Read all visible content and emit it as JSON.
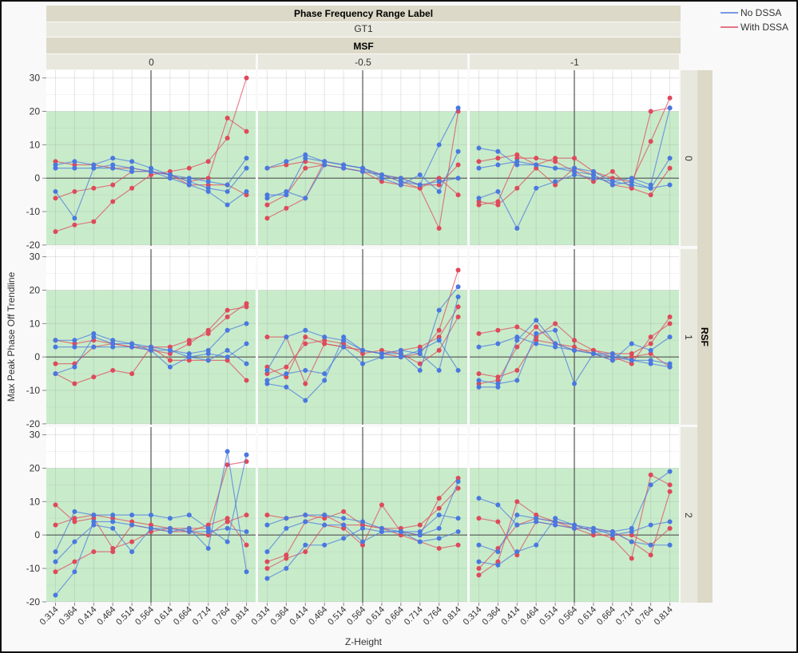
{
  "chart_data": {
    "type": "line",
    "title": "Phase Frequency Range Label",
    "group_value": "GT1",
    "column_facet": {
      "label": "MSF",
      "values": [
        "0",
        "-0.5",
        "-1"
      ]
    },
    "row_facet": {
      "label": "RSF",
      "values": [
        "0",
        "1",
        "2"
      ]
    },
    "xlabel": "Z-Height",
    "ylabel": "Max Peak Phase Off Trendline",
    "x": [
      0.314,
      0.364,
      0.414,
      0.464,
      0.514,
      0.564,
      0.614,
      0.664,
      0.714,
      0.764,
      0.814
    ],
    "x_tick_labels": [
      "0.314",
      "0.364",
      "0.414",
      "0.464",
      "0.514",
      "0.564",
      "0.614",
      "0.664",
      "0.714",
      "0.764",
      "0.814"
    ],
    "y_ticks": [
      30,
      20,
      10,
      0,
      -10,
      -20
    ],
    "ylim": [
      -20.5,
      32.3
    ],
    "reference_band": [
      -20,
      20
    ],
    "reference_x": 0.564,
    "reference_y": 0,
    "grid": true,
    "legend": {
      "placement": "top-right",
      "entries": [
        {
          "name": "No DSSA",
          "color": "#4a78e0"
        },
        {
          "name": "With DSSA",
          "color": "#de4a5c"
        }
      ]
    },
    "panels": [
      {
        "rsf": "0",
        "msf": "0",
        "No DSSA": [
          [
            4,
            5,
            4,
            6,
            5,
            3,
            1,
            -1,
            -3,
            -4,
            3
          ],
          [
            3,
            3,
            3,
            3,
            2,
            2,
            1,
            0,
            -1,
            -2,
            6
          ],
          [
            -4,
            -12,
            3,
            4,
            3,
            2,
            0,
            -2,
            -4,
            -8,
            -4
          ]
        ],
        "With DSSA": [
          [
            -16,
            -14,
            -13,
            -7,
            -3,
            1,
            2,
            3,
            5,
            12,
            30
          ],
          [
            -6,
            -4,
            -3,
            -2,
            2,
            2,
            1,
            -1,
            0,
            18,
            14
          ],
          [
            5,
            4,
            4,
            3,
            3,
            2,
            1,
            -2,
            -2,
            -2,
            -5
          ]
        ]
      },
      {
        "rsf": "0",
        "msf": "-0.5",
        "No DSSA": [
          [
            -5,
            -5,
            6,
            5,
            4,
            3,
            1,
            -1,
            -2,
            10,
            21
          ],
          [
            3,
            5,
            7,
            5,
            4,
            3,
            0,
            -2,
            1,
            -4,
            8
          ],
          [
            -6,
            -4,
            -6,
            4,
            3,
            2,
            1,
            0,
            -2,
            -1,
            0
          ]
        ],
        "With DSSA": [
          [
            -12,
            -9,
            -6,
            5,
            4,
            3,
            1,
            -1,
            -3,
            -15,
            20
          ],
          [
            3,
            4,
            5,
            4,
            3,
            2,
            -1,
            -2,
            -3,
            0,
            -5
          ],
          [
            -8,
            -5,
            3,
            4,
            3,
            2,
            1,
            0,
            -2,
            -2,
            4
          ]
        ]
      },
      {
        "rsf": "0",
        "msf": "-1",
        "No DSSA": [
          [
            9,
            8,
            4,
            4,
            3,
            3,
            2,
            -1,
            0,
            -2,
            21
          ],
          [
            -6,
            -4,
            -15,
            -3,
            -1,
            1,
            0,
            -1,
            -2,
            -3,
            6
          ],
          [
            3,
            4,
            5,
            4,
            3,
            2,
            1,
            -2,
            -1,
            -3,
            -2
          ]
        ],
        "With DSSA": [
          [
            -8,
            -7,
            6,
            6,
            5,
            2,
            -1,
            2,
            -3,
            20,
            21
          ],
          [
            5,
            6,
            7,
            4,
            6,
            6,
            2,
            0,
            -1,
            11,
            24
          ],
          [
            -7,
            -8,
            -3,
            3,
            -2,
            3,
            1,
            -2,
            -3,
            -5,
            3
          ]
        ]
      },
      {
        "rsf": "1",
        "msf": "0",
        "No DSSA": [
          [
            5,
            5,
            7,
            5,
            4,
            3,
            2,
            1,
            2,
            8,
            10
          ],
          [
            -5,
            -3,
            6,
            4,
            4,
            2,
            -3,
            0,
            -1,
            2,
            -2
          ],
          [
            3,
            3,
            3,
            3,
            3,
            2,
            2,
            0,
            1,
            0,
            4
          ]
        ],
        "With DSSA": [
          [
            -5,
            -8,
            -6,
            -4,
            -5,
            3,
            3,
            5,
            7,
            12,
            16
          ],
          [
            -2,
            -2,
            3,
            4,
            3,
            3,
            -1,
            -1,
            -1,
            -1,
            -7
          ],
          [
            5,
            4,
            5,
            4,
            3,
            2,
            1,
            4,
            8,
            14,
            15
          ]
        ]
      },
      {
        "rsf": "1",
        "msf": "-0.5",
        "No DSSA": [
          [
            -8,
            -9,
            -13,
            -7,
            6,
            2,
            1,
            1,
            -4,
            14,
            21
          ],
          [
            -4,
            6,
            8,
            6,
            5,
            2,
            1,
            2,
            1,
            -4,
            18
          ],
          [
            -7,
            -5,
            -4,
            -5,
            3,
            -2,
            0,
            0,
            2,
            5,
            -4
          ]
        ],
        "With DSSA": [
          [
            6,
            6,
            -8,
            4,
            3,
            2,
            1,
            0,
            1,
            8,
            26
          ],
          [
            -5,
            -3,
            4,
            5,
            4,
            1,
            2,
            1,
            -2,
            2,
            12
          ],
          [
            -3,
            -6,
            6,
            4,
            3,
            2,
            1,
            2,
            3,
            6,
            15
          ]
        ]
      },
      {
        "rsf": "1",
        "msf": "-1",
        "No DSSA": [
          [
            -9,
            -9,
            5,
            11,
            4,
            2,
            1,
            -1,
            4,
            2,
            6
          ],
          [
            -7,
            -8,
            -7,
            7,
            8,
            -8,
            1,
            1,
            -1,
            -1,
            -2
          ],
          [
            3,
            4,
            6,
            4,
            3,
            2,
            1,
            0,
            -1,
            -2,
            -3
          ]
        ],
        "With DSSA": [
          [
            7,
            8,
            9,
            6,
            10,
            5,
            2,
            1,
            1,
            4,
            12
          ],
          [
            -8,
            -7,
            3,
            9,
            4,
            3,
            1,
            -1,
            0,
            1,
            -3
          ],
          [
            -5,
            -6,
            -4,
            5,
            4,
            2,
            2,
            0,
            -2,
            6,
            10
          ]
        ]
      },
      {
        "rsf": "2",
        "msf": "0",
        "No DSSA": [
          [
            -18,
            -11,
            4,
            4,
            3,
            2,
            1,
            2,
            -4,
            25,
            -11
          ],
          [
            -5,
            7,
            6,
            6,
            6,
            6,
            5,
            6,
            2,
            -2,
            24
          ],
          [
            -8,
            -2,
            3,
            2,
            -5,
            2,
            2,
            1,
            1,
            2,
            1
          ]
        ],
        "With DSSA": [
          [
            9,
            4,
            5,
            -4,
            -2,
            1,
            2,
            2,
            2,
            21,
            22
          ],
          [
            -11,
            -8,
            -5,
            -5,
            3,
            2,
            1,
            1,
            3,
            5,
            -3
          ],
          [
            3,
            5,
            6,
            5,
            4,
            3,
            2,
            1,
            0,
            4,
            6
          ]
        ]
      },
      {
        "rsf": "2",
        "msf": "-0.5",
        "No DSSA": [
          [
            -13,
            -10,
            -3,
            -3,
            -1,
            2,
            1,
            1,
            -2,
            -1,
            1
          ],
          [
            3,
            5,
            6,
            6,
            5,
            4,
            2,
            1,
            0,
            2,
            16
          ],
          [
            -5,
            2,
            4,
            3,
            3,
            -2,
            1,
            1,
            1,
            6,
            5
          ]
        ],
        "With DSSA": [
          [
            -10,
            -7,
            -5,
            3,
            2,
            -3,
            9,
            1,
            0,
            11,
            17
          ],
          [
            6,
            5,
            6,
            5,
            7,
            3,
            2,
            0,
            -2,
            -4,
            -3
          ],
          [
            -8,
            -6,
            4,
            6,
            3,
            3,
            2,
            2,
            3,
            8,
            14
          ]
        ]
      },
      {
        "rsf": "2",
        "msf": "-1",
        "No DSSA": [
          [
            11,
            9,
            3,
            4,
            3,
            2,
            2,
            1,
            2,
            15,
            19
          ],
          [
            -8,
            -9,
            -5,
            -3,
            5,
            3,
            1,
            1,
            -2,
            -3,
            -3
          ],
          [
            -3,
            -5,
            6,
            5,
            4,
            3,
            2,
            0,
            1,
            3,
            4
          ]
        ],
        "With DSSA": [
          [
            -12,
            -8,
            10,
            6,
            4,
            3,
            1,
            -1,
            -7,
            18,
            15
          ],
          [
            5,
            4,
            -6,
            4,
            3,
            2,
            2,
            1,
            -2,
            -6,
            13
          ],
          [
            -10,
            -4,
            3,
            5,
            4,
            2,
            0,
            0,
            0,
            -3,
            2
          ]
        ]
      }
    ],
    "colors": {
      "band": "#c8ecca",
      "strip_dark": "#dcd9c8",
      "strip_light": "#e9e8de"
    }
  }
}
